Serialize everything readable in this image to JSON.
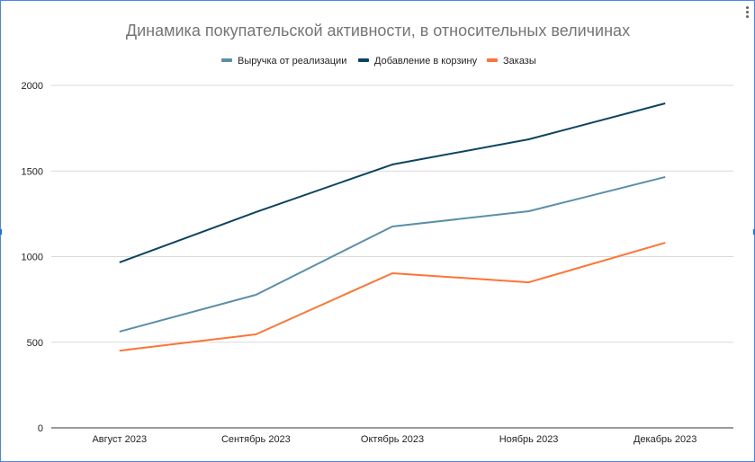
{
  "chart_data": {
    "type": "line",
    "title": "Динамика покупательской активности, в относительных величинах",
    "xlabel": "",
    "ylabel": "",
    "ylim": [
      0,
      2000
    ],
    "yticks": [
      0,
      500,
      1000,
      1500,
      2000
    ],
    "grid": true,
    "legend_position": "top",
    "categories": [
      "Август 2023",
      "Сентябрь 2023",
      "Октябрь 2023",
      "Ноябрь 2023",
      "Декабрь 2023"
    ],
    "series": [
      {
        "name": "Выручка от реализации",
        "color": "#5b8fa8",
        "values": [
          562,
          777,
          1176,
          1265,
          1465
        ]
      },
      {
        "name": "Добавление в корзину",
        "color": "#0b4461",
        "values": [
          966,
          1260,
          1538,
          1685,
          1895
        ]
      },
      {
        "name": "Заказы",
        "color": "#ff7433",
        "values": [
          451,
          546,
          903,
          850,
          1081
        ]
      }
    ]
  }
}
